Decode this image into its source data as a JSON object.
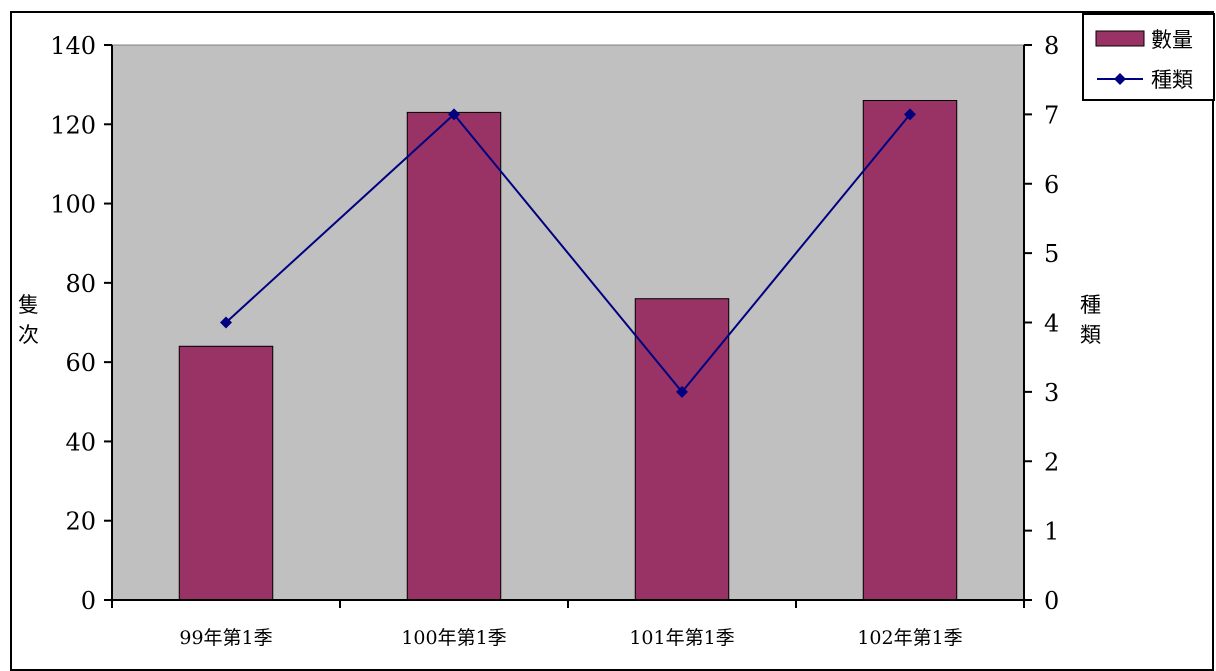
{
  "chart_data": {
    "type": "bar",
    "categories": [
      "99年第1季",
      "100年第1季",
      "101年第1季",
      "102年第1季"
    ],
    "series": [
      {
        "name": "數量",
        "type": "bar",
        "axis": "left",
        "values": [
          64,
          123,
          76,
          126
        ],
        "color": "#993366"
      },
      {
        "name": "種類",
        "type": "line",
        "axis": "right",
        "values": [
          4,
          7,
          3,
          7
        ],
        "color": "#000080",
        "marker": "diamond"
      }
    ],
    "ylabel": "隻次",
    "y2label": "種類",
    "ylim": [
      0,
      140
    ],
    "yticks": [
      "0",
      "20",
      "40",
      "60",
      "80",
      "100",
      "120",
      "140"
    ],
    "y2lim": [
      0,
      8
    ],
    "y2ticks": [
      "0",
      "1",
      "2",
      "3",
      "4",
      "5",
      "6",
      "7",
      "8"
    ],
    "plot_background": "#c0c0c0",
    "grid": false,
    "legend_position": "top-right"
  }
}
